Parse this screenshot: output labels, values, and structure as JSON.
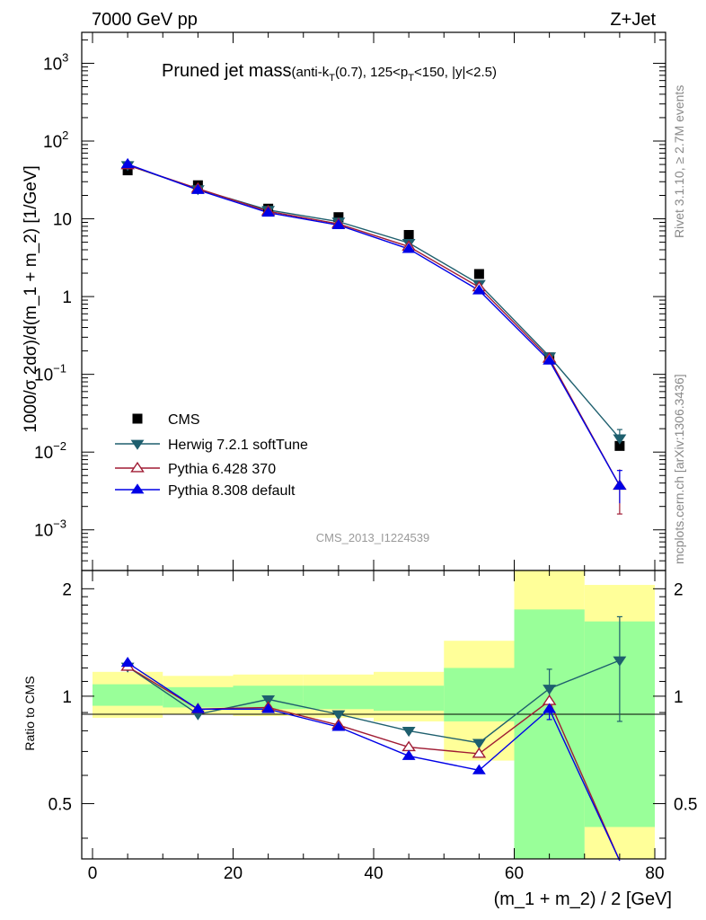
{
  "header": {
    "left": "7000 GeV pp",
    "right": "Z+Jet"
  },
  "title": {
    "main": "Pruned jet mass",
    "sub1": "(anti-k",
    "sub_T1": "T",
    "sub2": "(0.7), 125<p",
    "sub_T2": "T",
    "sub3": "<150, |y|<2.5)"
  },
  "side_labels": {
    "rivet": "Rivet 3.1.10, ≥ 2.7M events",
    "mcplots": "mcplots.cern.ch [arXiv:1306.3436]"
  },
  "watermark": "CMS_2013_I1224539",
  "chart_data": {
    "type": "line",
    "xlabel": "(m_1 + m_2) / 2 [GeV]",
    "ylabel_main": "1000/σ 2dσ)/d(m_1 + m_2) [1/GeV]",
    "ylabel_ratio": "Ratio to CMS",
    "xlim": [
      0,
      80
    ],
    "ylim_main": [
      0.0003,
      2500
    ],
    "ylog_main": true,
    "ylim_ratio": [
      0.35,
      2.25
    ],
    "ylog_ratio": true,
    "x_ticks": [
      "0",
      "20",
      "40",
      "60",
      "80"
    ],
    "y_ticks_main": [
      {
        "v": 0.001,
        "base": "10",
        "exp": "−3"
      },
      {
        "v": 0.01,
        "base": "10",
        "exp": "−2"
      },
      {
        "v": 0.1,
        "base": "10",
        "exp": "−1"
      },
      {
        "v": 1,
        "base": "1",
        "exp": ""
      },
      {
        "v": 10,
        "base": "10",
        "exp": ""
      },
      {
        "v": 100,
        "base": "10",
        "exp": "2"
      },
      {
        "v": 1000,
        "base": "10",
        "exp": "3"
      }
    ],
    "y_ticks_ratio": [
      {
        "v": 0.5,
        "label": "0.5"
      },
      {
        "v": 1,
        "label": "1"
      },
      {
        "v": 2,
        "label": "2"
      }
    ],
    "legend_position": "bottom-left",
    "x": [
      5,
      15,
      25,
      35,
      45,
      55,
      65,
      75
    ],
    "data": {
      "name": "CMS",
      "color": "#000000",
      "marker": "square",
      "values": [
        42,
        27,
        13.5,
        10.5,
        6.2,
        1.95,
        0.165,
        0.012
      ],
      "err": [
        1.5,
        1.0,
        0.5,
        0.4,
        0.3,
        0.12,
        0.012,
        0.003
      ]
    },
    "band": {
      "edges": [
        0,
        10,
        20,
        30,
        40,
        50,
        60,
        70,
        80
      ],
      "green": [
        [
          0.94,
          1.08
        ],
        [
          0.93,
          1.06
        ],
        [
          0.92,
          1.07
        ],
        [
          0.92,
          1.07
        ],
        [
          0.91,
          1.07
        ],
        [
          0.85,
          1.2
        ],
        [
          0.35,
          1.75
        ],
        [
          0.43,
          1.62
        ]
      ],
      "yellow": [
        [
          0.87,
          1.17
        ],
        [
          0.89,
          1.14
        ],
        [
          0.88,
          1.15
        ],
        [
          0.87,
          1.15
        ],
        [
          0.85,
          1.17
        ],
        [
          0.66,
          1.43
        ],
        [
          0.35,
          2.25
        ],
        [
          0.33,
          2.05
        ]
      ]
    },
    "series": [
      {
        "name": "Herwig 7.2.1 softTune",
        "color": "#1e5f6e",
        "marker": "tri-down-filled",
        "values": [
          49,
          24,
          13,
          9.2,
          4.9,
          1.45,
          0.17,
          0.015
        ],
        "ratio": [
          1.21,
          0.89,
          0.98,
          0.89,
          0.8,
          0.74,
          1.05,
          1.26
        ],
        "ratio_err": [
          0,
          0,
          0,
          0,
          0,
          0,
          0.14,
          0.41
        ]
      },
      {
        "name": "Pythia 6.428 370",
        "color": "#a01c34",
        "marker": "tri-up-open",
        "values": [
          49,
          24.5,
          12.5,
          8.6,
          4.4,
          1.32,
          0.16,
          0.0037
        ],
        "ratio": [
          1.21,
          0.92,
          0.93,
          0.83,
          0.72,
          0.69,
          0.97,
          0.3
        ],
        "ratio_err": [
          0,
          0,
          0,
          0,
          0,
          0,
          0,
          0
        ]
      },
      {
        "name": "Pythia 8.308 default",
        "color": "#0000e6",
        "marker": "tri-up-filled",
        "values": [
          50.5,
          23.5,
          12,
          8.3,
          4.1,
          1.2,
          0.15,
          0.0037
        ],
        "ratio": [
          1.24,
          0.92,
          0.92,
          0.82,
          0.68,
          0.62,
          0.92,
          0.3
        ],
        "ratio_err": [
          0,
          0,
          0,
          0,
          0,
          0,
          0.06,
          0
        ]
      }
    ]
  }
}
